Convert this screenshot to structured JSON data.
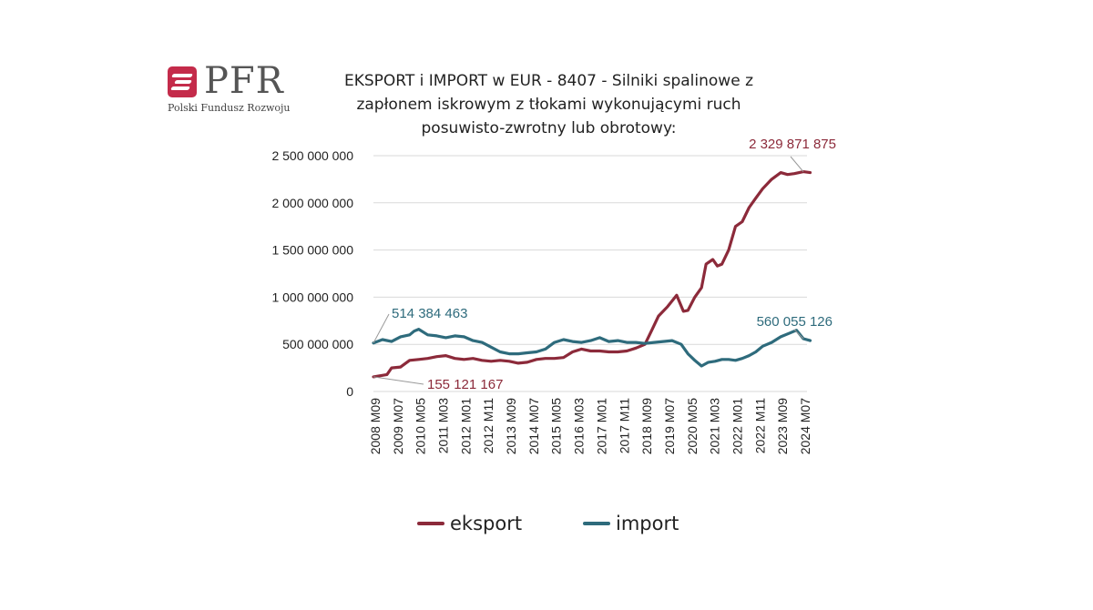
{
  "logo": {
    "text": "PFR",
    "subtitle": "Polski Fundusz Rozwoju",
    "color": "#c42b4a"
  },
  "chart_data": {
    "type": "line",
    "title": "EKSPORT i IMPORT w EUR - 8407 - Silniki spalinowe z zapłonem iskrowym z tłokami wykonującymi ruch posuwisto-zwrotny lub obrotowy:",
    "title_lines": [
      "EKSPORT i IMPORT w EUR - 8407 - Silniki spalinowe z",
      "zapłonem iskrowym z tłokami wykonującymi ruch",
      "posuwisto-zwrotny lub obrotowy:"
    ],
    "xlabel": "",
    "ylabel": "",
    "x_tick_labels": [
      "2008 M09",
      "2009 M07",
      "2010 M05",
      "2011 M03",
      "2012 M01",
      "2012 M11",
      "2013 M09",
      "2014 M07",
      "2015 M05",
      "2016 M03",
      "2017 M01",
      "2017 M11",
      "2018 M09",
      "2019 M07",
      "2020 M05",
      "2021 M03",
      "2022 M01",
      "2022 M11",
      "2023 M09",
      "2024 M07"
    ],
    "y_ticks": [
      0,
      500000000,
      1000000000,
      1500000000,
      2000000000,
      2500000000
    ],
    "y_tick_labels": [
      "0",
      "500 000 000",
      "1 000 000 000",
      "1 500 000 000",
      "2 000 000 000",
      "2 500 000 000"
    ],
    "ylim": [
      0,
      2500000000
    ],
    "grid": true,
    "legend_position": "bottom",
    "annotations": [
      {
        "text": "514 384 463",
        "series": "import",
        "color": "#2e6b7c"
      },
      {
        "text": "155 121 167",
        "series": "eksport",
        "color": "#8c2a3a"
      },
      {
        "text": "2 329 871 875",
        "series": "eksport",
        "color": "#8c2a3a"
      },
      {
        "text": "560 055 126",
        "series": "import",
        "color": "#2e6b7c"
      }
    ],
    "series": [
      {
        "name": "eksport",
        "color": "#8c2a3a",
        "x": [
          "2008-09",
          "2009-03",
          "2009-05",
          "2009-09",
          "2010-01",
          "2010-05",
          "2010-09",
          "2011-01",
          "2011-05",
          "2011-09",
          "2012-01",
          "2012-05",
          "2012-09",
          "2013-01",
          "2013-05",
          "2013-09",
          "2014-01",
          "2014-05",
          "2014-09",
          "2015-01",
          "2015-05",
          "2015-09",
          "2016-01",
          "2016-05",
          "2016-09",
          "2017-01",
          "2017-05",
          "2017-09",
          "2018-01",
          "2018-05",
          "2018-09",
          "2018-12",
          "2019-03",
          "2019-07",
          "2019-11",
          "2020-02",
          "2020-04",
          "2020-07",
          "2020-10",
          "2020-12",
          "2021-03",
          "2021-05",
          "2021-07",
          "2021-10",
          "2022-01",
          "2022-04",
          "2022-07",
          "2022-10",
          "2023-01",
          "2023-05",
          "2023-09",
          "2023-12",
          "2024-03",
          "2024-07",
          "2024-10"
        ],
        "y": [
          155121167,
          180000000,
          250000000,
          260000000,
          330000000,
          340000000,
          350000000,
          370000000,
          380000000,
          350000000,
          340000000,
          350000000,
          330000000,
          320000000,
          330000000,
          320000000,
          300000000,
          310000000,
          340000000,
          350000000,
          350000000,
          360000000,
          420000000,
          450000000,
          430000000,
          430000000,
          420000000,
          420000000,
          430000000,
          460000000,
          500000000,
          650000000,
          800000000,
          900000000,
          1020000000,
          850000000,
          860000000,
          1000000000,
          1100000000,
          1350000000,
          1400000000,
          1330000000,
          1350000000,
          1500000000,
          1750000000,
          1800000000,
          1950000000,
          2050000000,
          2150000000,
          2250000000,
          2320000000,
          2300000000,
          2310000000,
          2329871875,
          2320000000
        ]
      },
      {
        "name": "import",
        "color": "#2e6b7c",
        "x": [
          "2008-09",
          "2009-01",
          "2009-05",
          "2009-09",
          "2010-01",
          "2010-03",
          "2010-05",
          "2010-09",
          "2011-01",
          "2011-05",
          "2011-09",
          "2012-01",
          "2012-05",
          "2012-09",
          "2013-01",
          "2013-05",
          "2013-09",
          "2014-01",
          "2014-05",
          "2014-09",
          "2015-01",
          "2015-05",
          "2015-09",
          "2016-01",
          "2016-05",
          "2016-09",
          "2017-01",
          "2017-05",
          "2017-09",
          "2018-01",
          "2018-05",
          "2018-09",
          "2019-01",
          "2019-05",
          "2019-09",
          "2020-01",
          "2020-04",
          "2020-07",
          "2020-10",
          "2021-01",
          "2021-04",
          "2021-07",
          "2021-10",
          "2022-01",
          "2022-04",
          "2022-07",
          "2022-10",
          "2023-01",
          "2023-05",
          "2023-09",
          "2024-01",
          "2024-04",
          "2024-07",
          "2024-10"
        ],
        "y": [
          514384463,
          550000000,
          530000000,
          580000000,
          600000000,
          640000000,
          660000000,
          600000000,
          590000000,
          570000000,
          590000000,
          580000000,
          540000000,
          520000000,
          470000000,
          420000000,
          400000000,
          400000000,
          410000000,
          420000000,
          450000000,
          520000000,
          550000000,
          530000000,
          520000000,
          540000000,
          570000000,
          530000000,
          540000000,
          520000000,
          520000000,
          510000000,
          520000000,
          530000000,
          540000000,
          500000000,
          400000000,
          330000000,
          270000000,
          310000000,
          320000000,
          340000000,
          340000000,
          330000000,
          350000000,
          380000000,
          420000000,
          480000000,
          520000000,
          580000000,
          620000000,
          650000000,
          560055126,
          540000000
        ]
      }
    ]
  }
}
